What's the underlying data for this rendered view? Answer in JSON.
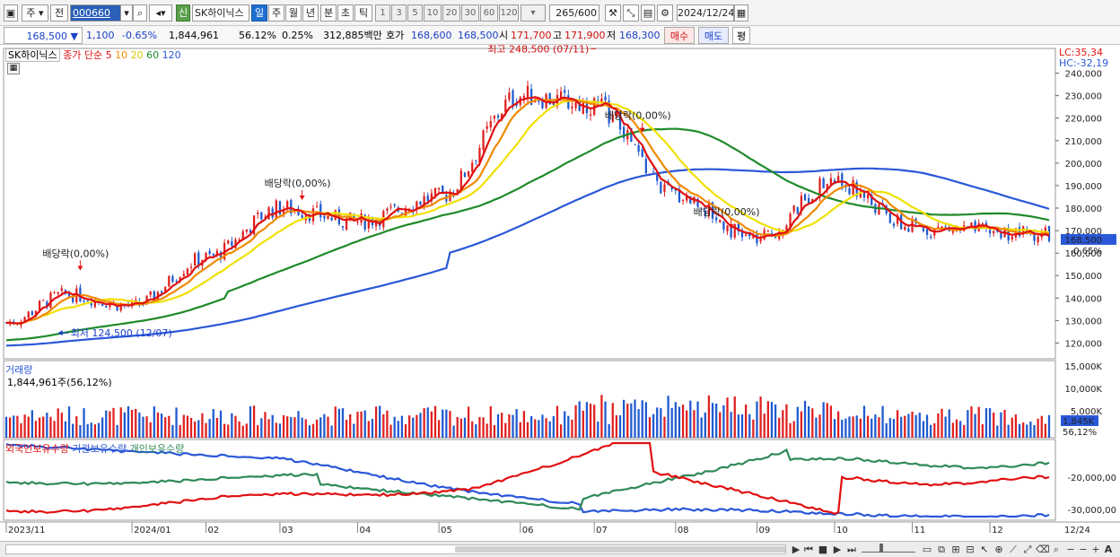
{
  "toolbar": {
    "market": "주",
    "prev_label": "전",
    "code": "000660",
    "stock_name": "SK하이닉스",
    "new_badge": "신",
    "periods": [
      "일",
      "주",
      "월",
      "년",
      "분",
      "초",
      "틱"
    ],
    "active_period": "일",
    "intervals": [
      "1",
      "3",
      "5",
      "10",
      "20",
      "30",
      "60",
      "120"
    ],
    "count": "265",
    "count_total": "/600",
    "date": "2024/12/24"
  },
  "info": {
    "price": "168,500",
    "change_arrow": "▼",
    "change": "1,100",
    "change_rate": "-0.65%",
    "volume": "1,844,961",
    "turnover_rate": "56.12%",
    "ratio": "0.25%",
    "amount": "312,885백만",
    "ask_label": "호가",
    "bid_price": "168,600",
    "ask_price": "168,500",
    "open_label": "시",
    "open": "171,700",
    "high_label": "고",
    "high": "171,900",
    "low_label": "저",
    "low": "168,300",
    "buy_button": "매수",
    "sell_button": "매도",
    "eval_button": "평"
  },
  "legend": {
    "name": "SK하이닉스",
    "close_label": "종가 단순",
    "ma5": "5",
    "ma10": "10",
    "ma20": "20",
    "ma60": "60",
    "ma120": "120",
    "lc": "LC:35,34",
    "hc": "HC:-32,19",
    "volume_title": "거래량",
    "volume_value": "1,844,961주(56,12%)",
    "holding_foreign": "외국인보유수량",
    "holding_inst": "기관보유수량",
    "holding_indiv": "개인보유수량"
  },
  "colors": {
    "ma5": "#e01010",
    "ma10": "#f08a00",
    "ma20": "#f0e000",
    "ma60": "#1f8a2a",
    "ma120": "#2a58d8",
    "up": "#e02020",
    "down": "#1f5ad0",
    "foreign": "#e01010",
    "inst": "#2a58d8",
    "indiv": "#2f8a58"
  },
  "chart_data": {
    "type": "candlestick",
    "x_tick_labels": [
      "2023/11",
      "2024/01",
      "02",
      "03",
      "04",
      "05",
      "06",
      "07",
      "08",
      "09",
      "10",
      "11",
      "12",
      "12/24"
    ],
    "y_ticks": [
      "240,000",
      "230,000",
      "220,000",
      "210,000",
      "200,000",
      "190,000",
      "180,000",
      "170,000",
      "160,000",
      "150,000",
      "140,000",
      "130,000",
      "120,000"
    ],
    "y_range": [
      113000,
      251000
    ],
    "last_price_tag": "168,500",
    "last_change_tag": "-0.65%",
    "annotations": [
      {
        "text": "배당락(0,00%)",
        "type": "dividend"
      },
      {
        "text": "배당락(0,00%)",
        "type": "dividend"
      },
      {
        "text": "배당락(0,00%)",
        "type": "dividend"
      },
      {
        "text": "배당락(0,00%)",
        "type": "dividend"
      },
      {
        "text": "최고 248,500 (07/11)",
        "type": "high",
        "value": 248500
      },
      {
        "text": "최저 124,500 (12/07)",
        "type": "low",
        "value": 124500
      }
    ],
    "close_monthly": [
      {
        "label": "2023/11",
        "close": 129000
      },
      {
        "label": "2023/12",
        "close": 141500
      },
      {
        "label": "2024/01",
        "close": 136500
      },
      {
        "label": "2024/02",
        "close": 158000
      },
      {
        "label": "2024/03",
        "close": 180000
      },
      {
        "label": "2024/04",
        "close": 174000
      },
      {
        "label": "2024/05",
        "close": 185000
      },
      {
        "label": "2024/06",
        "close": 230000
      },
      {
        "label": "2024/07",
        "close": 226000
      },
      {
        "label": "2024/08",
        "close": 186000
      },
      {
        "label": "2024/09",
        "close": 166000
      },
      {
        "label": "2024/10",
        "close": 192000
      },
      {
        "label": "2024/11",
        "close": 171000
      },
      {
        "label": "2024/12",
        "close": 168500
      }
    ],
    "volume": {
      "y_ticks": [
        "15,000K",
        "10,000K",
        "5,000K"
      ],
      "last_tag": "1,845K",
      "last_rate_tag": "56,12%"
    },
    "holdings": {
      "y_ticks": [
        "-20,000,00",
        "-30,000,00"
      ]
    }
  },
  "bottom_bar": {
    "date_label": "12/24"
  }
}
